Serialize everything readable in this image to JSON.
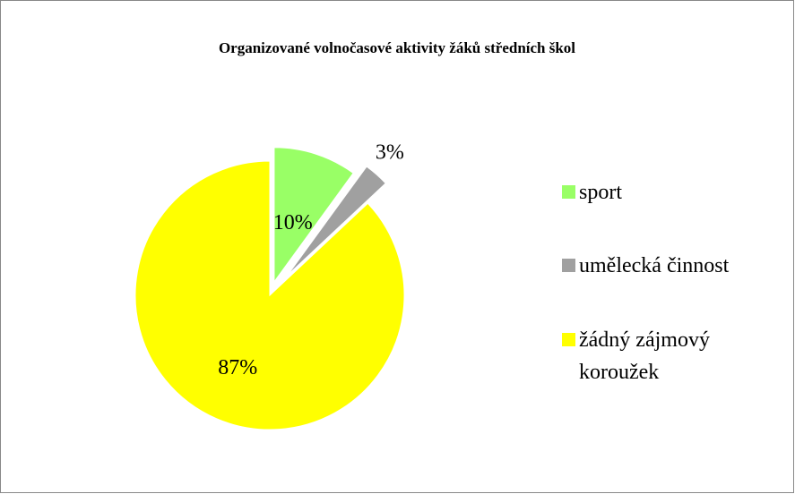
{
  "chart_data": {
    "type": "pie",
    "title": "Organizované volnočasové aktivity žáků středních škol",
    "categories": [
      "sport",
      "umělecká činnost",
      "žádný zájmový koroužek"
    ],
    "values": [
      10,
      3,
      87
    ],
    "value_labels": [
      "10%",
      "3%",
      "87%"
    ],
    "colors": [
      "#99ff66",
      "#a0a0a0",
      "#ffff00"
    ],
    "legend": "right"
  }
}
